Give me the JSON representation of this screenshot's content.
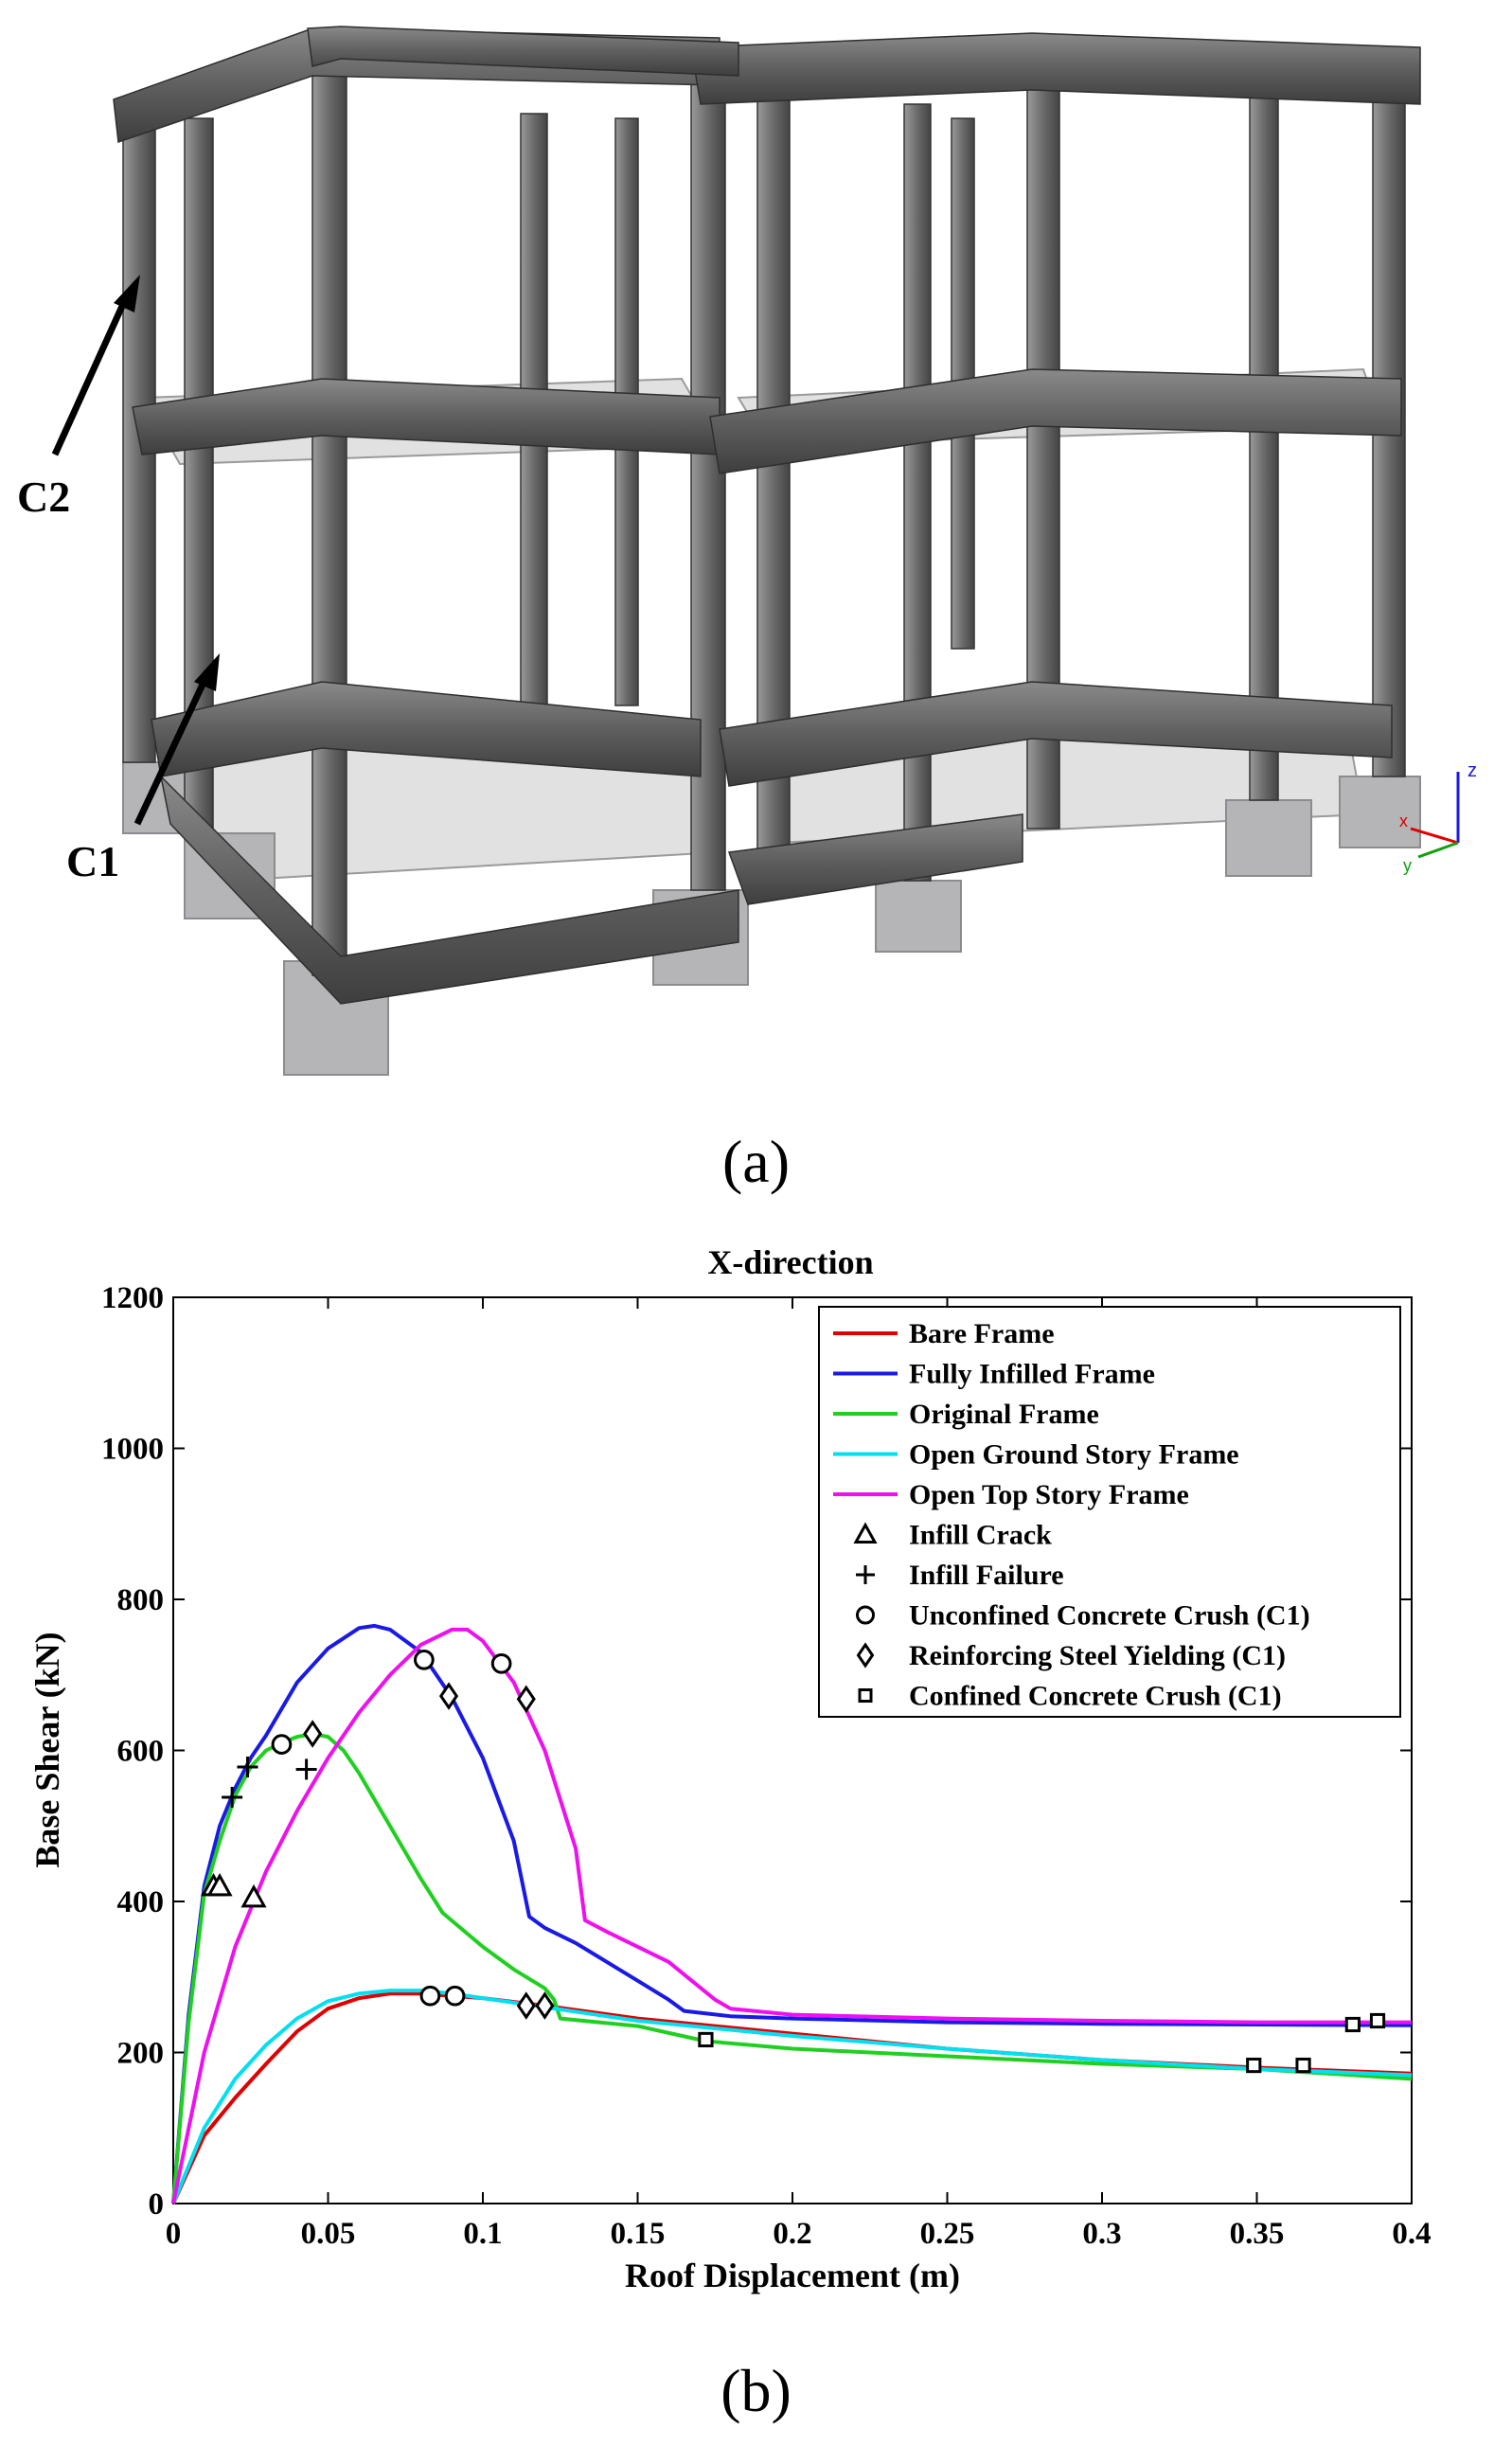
{
  "figure_a": {
    "caption": "(a)",
    "annotations": [
      "C2",
      "C1"
    ],
    "axis_triad": [
      "z",
      "x",
      "y"
    ]
  },
  "figure_b": {
    "caption": "(b)"
  },
  "chart_data": {
    "type": "line",
    "title": "X-direction",
    "xlabel": "Roof Displacement (m)",
    "ylabel": "Base Shear (kN)",
    "xlim": [
      0,
      0.4
    ],
    "ylim": [
      0,
      1200
    ],
    "x_ticks": [
      0,
      0.05,
      0.1,
      0.15,
      0.2,
      0.25,
      0.3,
      0.35,
      0.4
    ],
    "x_tick_labels": [
      "0",
      "0.05",
      "0.1",
      "0.15",
      "0.2",
      "0.25",
      "0.3",
      "0.35",
      "0.4"
    ],
    "y_ticks": [
      0,
      200,
      400,
      600,
      800,
      1000,
      1200
    ],
    "y_tick_labels": [
      "0",
      "200",
      "400",
      "600",
      "800",
      "1000",
      "1200"
    ],
    "grid": false,
    "legend_position": "top-right",
    "series": [
      {
        "name": "Bare Frame",
        "color": "#e00000",
        "x": [
          0,
          0.01,
          0.02,
          0.03,
          0.04,
          0.05,
          0.06,
          0.07,
          0.08,
          0.09,
          0.1,
          0.12,
          0.15,
          0.2,
          0.25,
          0.3,
          0.35,
          0.4
        ],
        "y": [
          0,
          90,
          140,
          185,
          228,
          258,
          272,
          278,
          278,
          275,
          272,
          262,
          245,
          225,
          205,
          190,
          180,
          172
        ]
      },
      {
        "name": "Fully Infilled Frame",
        "color": "#1a1ae6",
        "x": [
          0,
          0.005,
          0.01,
          0.015,
          0.02,
          0.025,
          0.03,
          0.04,
          0.05,
          0.06,
          0.065,
          0.07,
          0.08,
          0.09,
          0.1,
          0.11,
          0.115,
          0.12,
          0.13,
          0.14,
          0.15,
          0.16,
          0.165,
          0.18,
          0.2,
          0.25,
          0.3,
          0.35,
          0.4
        ],
        "y": [
          0,
          250,
          420,
          500,
          550,
          590,
          620,
          690,
          735,
          762,
          765,
          760,
          730,
          670,
          590,
          480,
          380,
          365,
          345,
          320,
          295,
          270,
          255,
          248,
          245,
          240,
          238,
          237,
          236
        ]
      },
      {
        "name": "Original Frame",
        "color": "#20d020",
        "x": [
          0,
          0.005,
          0.01,
          0.015,
          0.02,
          0.025,
          0.03,
          0.035,
          0.04,
          0.045,
          0.05,
          0.055,
          0.06,
          0.07,
          0.08,
          0.087,
          0.1,
          0.11,
          0.12,
          0.123,
          0.125,
          0.15,
          0.172,
          0.2,
          0.25,
          0.3,
          0.35,
          0.4
        ],
        "y": [
          0,
          240,
          410,
          480,
          540,
          578,
          600,
          610,
          618,
          622,
          618,
          600,
          570,
          500,
          430,
          385,
          340,
          310,
          285,
          270,
          245,
          235,
          215,
          205,
          195,
          185,
          178,
          165
        ]
      },
      {
        "name": "Open Ground Story Frame",
        "color": "#00e0f0",
        "x": [
          0,
          0.01,
          0.02,
          0.03,
          0.04,
          0.05,
          0.06,
          0.07,
          0.08,
          0.09,
          0.1,
          0.12,
          0.15,
          0.2,
          0.25,
          0.3,
          0.35,
          0.4
        ],
        "y": [
          0,
          100,
          165,
          210,
          245,
          268,
          278,
          282,
          282,
          278,
          272,
          260,
          242,
          222,
          205,
          190,
          178,
          170
        ]
      },
      {
        "name": "Open Top Story Frame",
        "color": "#ee10ee",
        "x": [
          0,
          0.01,
          0.02,
          0.03,
          0.04,
          0.05,
          0.06,
          0.07,
          0.08,
          0.09,
          0.095,
          0.1,
          0.11,
          0.12,
          0.13,
          0.133,
          0.14,
          0.16,
          0.175,
          0.18,
          0.2,
          0.25,
          0.3,
          0.35,
          0.4
        ],
        "y": [
          0,
          200,
          340,
          440,
          520,
          590,
          650,
          700,
          740,
          760,
          760,
          745,
          690,
          600,
          470,
          375,
          360,
          320,
          270,
          258,
          250,
          245,
          242,
          240,
          240
        ]
      }
    ],
    "markers": [
      {
        "name": "Infill Crack",
        "symbol": "triangle",
        "points": [
          [
            0.013,
            420
          ],
          [
            0.015,
            420
          ],
          [
            0.026,
            405
          ]
        ]
      },
      {
        "name": "Infill Failure",
        "symbol": "plus",
        "points": [
          [
            0.019,
            538
          ],
          [
            0.024,
            578
          ],
          [
            0.043,
            575
          ]
        ]
      },
      {
        "name": "Unconfined Concrete Crush (C1)",
        "symbol": "circle",
        "points": [
          [
            0.035,
            608
          ],
          [
            0.081,
            720
          ],
          [
            0.106,
            715
          ],
          [
            0.083,
            275
          ],
          [
            0.091,
            275
          ]
        ]
      },
      {
        "name": "Reinforcing Steel Yielding (C1)",
        "symbol": "diamond",
        "points": [
          [
            0.045,
            622
          ],
          [
            0.089,
            672
          ],
          [
            0.114,
            668
          ],
          [
            0.114,
            262
          ],
          [
            0.12,
            262
          ]
        ]
      },
      {
        "name": "Confined Concrete Crush (C1)",
        "symbol": "square",
        "points": [
          [
            0.172,
            217
          ],
          [
            0.349,
            183
          ],
          [
            0.365,
            183
          ],
          [
            0.381,
            237
          ],
          [
            0.389,
            242
          ]
        ]
      }
    ]
  }
}
